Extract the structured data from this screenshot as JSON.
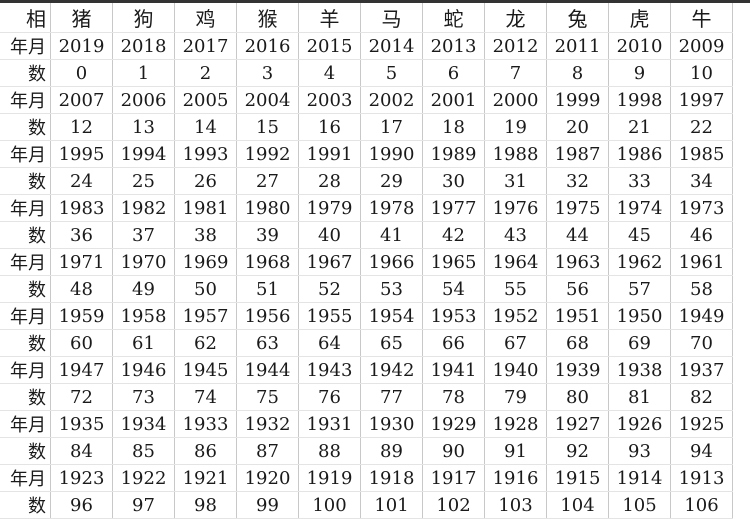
{
  "labels": {
    "header": "相",
    "year": "年月",
    "age": "数"
  },
  "zodiac": [
    "猪",
    "狗",
    "鸡",
    "猴",
    "羊",
    "马",
    "蛇",
    "龙",
    "兔",
    "虎",
    "牛"
  ],
  "groups": [
    {
      "years": [
        "2019",
        "2018",
        "2017",
        "2016",
        "2015",
        "2014",
        "2013",
        "2012",
        "2011",
        "2010",
        "2009"
      ],
      "ages": [
        "0",
        "1",
        "2",
        "3",
        "4",
        "5",
        "6",
        "7",
        "8",
        "9",
        "10"
      ]
    },
    {
      "years": [
        "2007",
        "2006",
        "2005",
        "2004",
        "2003",
        "2002",
        "2001",
        "2000",
        "1999",
        "1998",
        "1997"
      ],
      "ages": [
        "12",
        "13",
        "14",
        "15",
        "16",
        "17",
        "18",
        "19",
        "20",
        "21",
        "22"
      ]
    },
    {
      "years": [
        "1995",
        "1994",
        "1993",
        "1992",
        "1991",
        "1990",
        "1989",
        "1988",
        "1987",
        "1986",
        "1985"
      ],
      "ages": [
        "24",
        "25",
        "26",
        "27",
        "28",
        "29",
        "30",
        "31",
        "32",
        "33",
        "34"
      ]
    },
    {
      "years": [
        "1983",
        "1982",
        "1981",
        "1980",
        "1979",
        "1978",
        "1977",
        "1976",
        "1975",
        "1974",
        "1973"
      ],
      "ages": [
        "36",
        "37",
        "38",
        "39",
        "40",
        "41",
        "42",
        "43",
        "44",
        "45",
        "46"
      ]
    },
    {
      "years": [
        "1971",
        "1970",
        "1969",
        "1968",
        "1967",
        "1966",
        "1965",
        "1964",
        "1963",
        "1962",
        "1961"
      ],
      "ages": [
        "48",
        "49",
        "50",
        "51",
        "52",
        "53",
        "54",
        "55",
        "56",
        "57",
        "58"
      ]
    },
    {
      "years": [
        "1959",
        "1958",
        "1957",
        "1956",
        "1955",
        "1954",
        "1953",
        "1952",
        "1951",
        "1950",
        "1949"
      ],
      "ages": [
        "60",
        "61",
        "62",
        "63",
        "64",
        "65",
        "66",
        "67",
        "68",
        "69",
        "70"
      ]
    },
    {
      "years": [
        "1947",
        "1946",
        "1945",
        "1944",
        "1943",
        "1942",
        "1941",
        "1940",
        "1939",
        "1938",
        "1937"
      ],
      "ages": [
        "72",
        "73",
        "74",
        "75",
        "76",
        "77",
        "78",
        "79",
        "80",
        "81",
        "82"
      ]
    },
    {
      "years": [
        "1935",
        "1934",
        "1933",
        "1932",
        "1931",
        "1930",
        "1929",
        "1928",
        "1927",
        "1926",
        "1925"
      ],
      "ages": [
        "84",
        "85",
        "86",
        "87",
        "88",
        "89",
        "90",
        "91",
        "92",
        "93",
        "94"
      ]
    },
    {
      "years": [
        "1923",
        "1922",
        "1921",
        "1920",
        "1919",
        "1918",
        "1917",
        "1916",
        "1915",
        "1914",
        "1913"
      ],
      "ages": [
        "96",
        "97",
        "98",
        "99",
        "100",
        "101",
        "102",
        "103",
        "104",
        "105",
        "106"
      ]
    }
  ]
}
